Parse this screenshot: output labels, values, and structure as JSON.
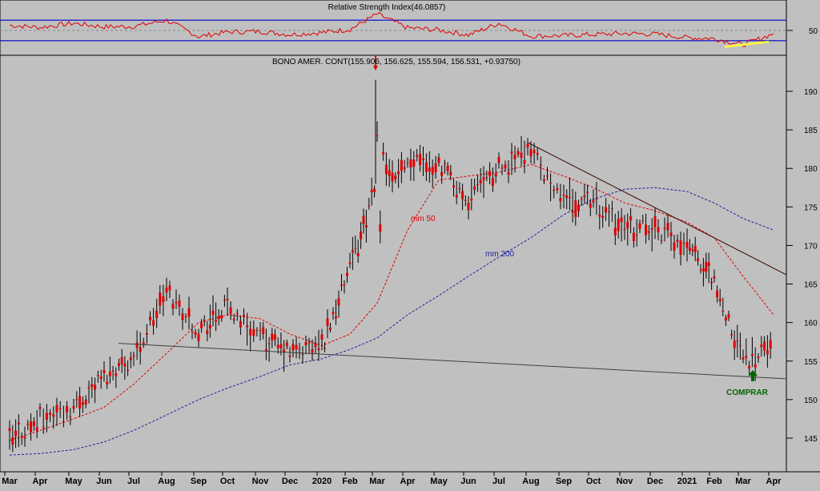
{
  "rsi_panel": {
    "title": "Relative Strength Index(46.0857)",
    "tick_label": "50",
    "upper_band": 70,
    "lower_band": 30,
    "line_color": "#e00000",
    "band_color": "#0000cc",
    "highlight_color": "#ffff33"
  },
  "price_panel": {
    "title": "BONO AMER. CONT(155.906, 156.625, 155.594, 156.531, +0.93750)",
    "ma50_label": "mm 50",
    "ma200_label": "mm 200",
    "signal_label": "COMPRAR",
    "signal_color": "#006600",
    "candle_color": "#e00000",
    "ma50_color": "#e00000",
    "ma200_color": "#2020a0",
    "trendline_color": "#400000"
  },
  "chart_data": [
    {
      "type": "line",
      "title": "Relative Strength Index(46.0857)",
      "y_ticks": [
        50
      ],
      "bands": [
        70,
        30
      ],
      "x": [
        "Mar 2019",
        "Apr",
        "May",
        "Jun",
        "Jul",
        "Aug",
        "Sep",
        "Oct",
        "Nov",
        "Dec",
        "2020",
        "Feb",
        "Mar",
        "Apr",
        "May",
        "Jun",
        "Jul",
        "Aug",
        "Sep",
        "Oct",
        "Nov",
        "Dec",
        "2021",
        "Feb",
        "Mar",
        "Apr"
      ],
      "series": [
        {
          "values": [
            60,
            56,
            64,
            57,
            58,
            70,
            38,
            47,
            48,
            42,
            46,
            52,
            82,
            55,
            51,
            41,
            64,
            39,
            40,
            42,
            44,
            43,
            36,
            34,
            22,
            44
          ]
        }
      ]
    },
    {
      "type": "line",
      "title": "BONO AMER. CONT(155.906, 156.625, 155.594, 156.531, +0.93750)",
      "style": "candlestick",
      "x_tick_labels": [
        "Mar",
        "Apr",
        "May",
        "Jun",
        "Jul",
        "Aug",
        "Sep",
        "Oct",
        "Nov",
        "Dec",
        "2020",
        "Feb",
        "Mar",
        "Apr",
        "May",
        "Jun",
        "Jul",
        "Aug",
        "Sep",
        "Oct",
        "Nov",
        "Dec",
        "2021",
        "Feb",
        "Mar",
        "Apr"
      ],
      "y_ticks": [
        145,
        150,
        155,
        160,
        165,
        170,
        175,
        180,
        185,
        190
      ],
      "ylim": [
        142,
        197
      ],
      "series": [
        {
          "name": "BONO AMER. CONT",
          "x": [
            "2019-03",
            "2019-04",
            "2019-05",
            "2019-06",
            "2019-07",
            "2019-08",
            "2019-09",
            "2019-10",
            "2019-11",
            "2019-12",
            "2020-01",
            "2020-02",
            "2020-03",
            "2020-04",
            "2020-05",
            "2020-06",
            "2020-07",
            "2020-08",
            "2020-09",
            "2020-10",
            "2020-11",
            "2020-12",
            "2021-01",
            "2021-02",
            "2021-03",
            "2021-04"
          ],
          "values": [
            144.5,
            147.5,
            149,
            153,
            155.5,
            164,
            159,
            162,
            158,
            156,
            157,
            167,
            178,
            181,
            180,
            176,
            180,
            182,
            176,
            175.5,
            172,
            172.5,
            170,
            165,
            155,
            156.5
          ]
        },
        {
          "name": "mm 50",
          "x": [
            "2019-03",
            "2019-04",
            "2019-05",
            "2019-06",
            "2019-07",
            "2019-08",
            "2019-09",
            "2019-10",
            "2019-11",
            "2019-12",
            "2020-01",
            "2020-02",
            "2020-03",
            "2020-04",
            "2020-05",
            "2020-06",
            "2020-07",
            "2020-08",
            "2020-09",
            "2020-10",
            "2020-11",
            "2020-12",
            "2021-01",
            "2021-02",
            "2021-03",
            "2021-04"
          ],
          "values": [
            144.7,
            146,
            147.5,
            149,
            152,
            156,
            160,
            161,
            160.5,
            158.5,
            157,
            158.5,
            162.5,
            172,
            178.5,
            179,
            179.5,
            180.5,
            179,
            177.5,
            175.5,
            174.5,
            173,
            171,
            166,
            161
          ]
        },
        {
          "name": "mm 200",
          "x": [
            "2019-03",
            "2019-04",
            "2019-05",
            "2019-06",
            "2019-07",
            "2019-08",
            "2019-09",
            "2019-10",
            "2019-11",
            "2019-12",
            "2020-01",
            "2020-02",
            "2020-03",
            "2020-04",
            "2020-05",
            "2020-06",
            "2020-07",
            "2020-08",
            "2020-09",
            "2020-10",
            "2020-11",
            "2020-12",
            "2021-01",
            "2021-02",
            "2021-03",
            "2021-04"
          ],
          "values": [
            142.8,
            143,
            143.5,
            144.5,
            146,
            148,
            150,
            151.5,
            153,
            154.5,
            155.3,
            156.5,
            158,
            161,
            163.5,
            166,
            168.5,
            171,
            174,
            176,
            177.3,
            177.5,
            177,
            175.5,
            173.5,
            172
          ]
        }
      ],
      "annotations": [
        "mm 50",
        "mm 200",
        "COMPRAR"
      ]
    }
  ]
}
